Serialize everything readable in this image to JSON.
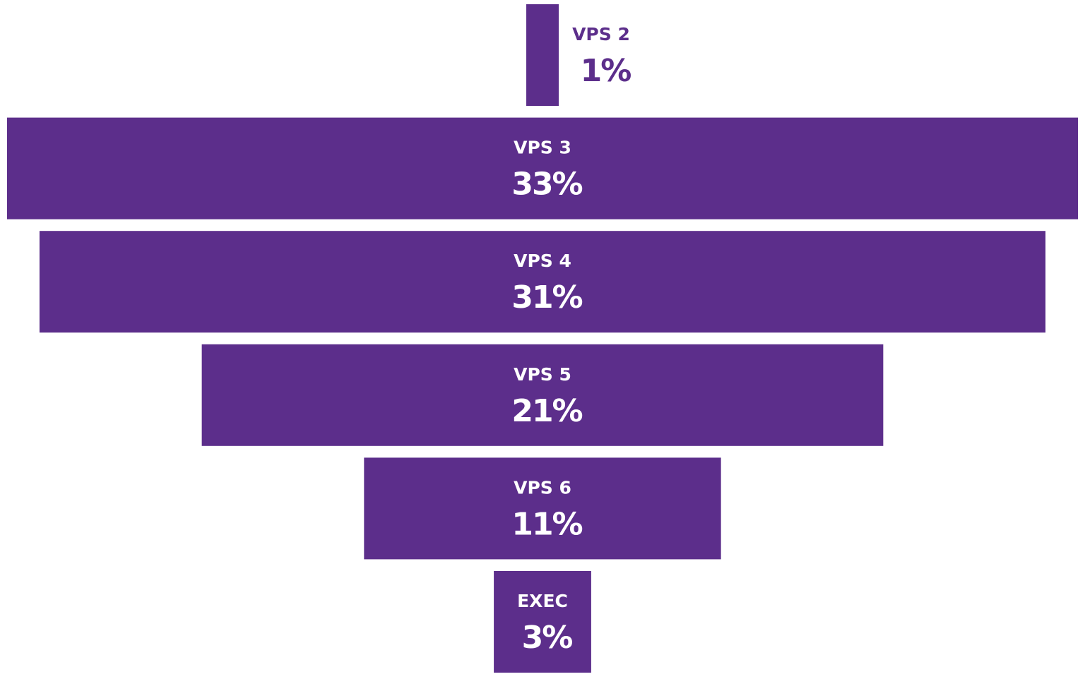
{
  "chart_data": {
    "type": "funnel",
    "categories": [
      "VPS 2",
      "VPS 3",
      "VPS 4",
      "VPS 5",
      "VPS 6",
      "EXEC"
    ],
    "values": [
      1,
      33,
      31,
      21,
      11,
      3
    ],
    "value_labels": [
      "1%",
      "33%",
      "31%",
      "21%",
      "11%",
      "3%"
    ],
    "color": "#5c2e8b"
  }
}
